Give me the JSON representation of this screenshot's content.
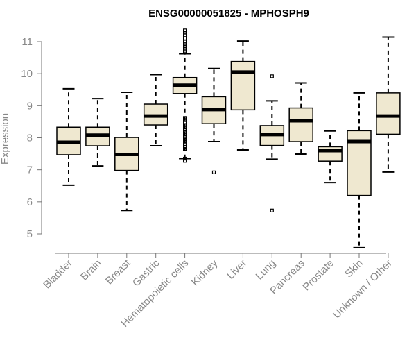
{
  "chart_data": {
    "type": "boxplot",
    "title": "ENSG00000051825 - MPHOSPH9",
    "xlabel": "",
    "ylabel": "Expression",
    "ylim": [
      4.3,
      11.4
    ],
    "yticks": [
      5,
      6,
      7,
      8,
      9,
      10,
      11
    ],
    "categories": [
      "Bladder",
      "Brain",
      "Breast",
      "Gastric",
      "Hematopoietic cells",
      "Kidney",
      "Liver",
      "Lung",
      "Pancreas",
      "Prostate",
      "Skin",
      "Unknown / Other"
    ],
    "boxes": [
      {
        "category": "Bladder",
        "whisker_low": 6.52,
        "q1": 7.47,
        "median": 7.86,
        "q3": 8.33,
        "whisker_high": 9.53,
        "outliers": []
      },
      {
        "category": "Brain",
        "whisker_low": 7.12,
        "q1": 7.75,
        "median": 8.08,
        "q3": 8.33,
        "whisker_high": 9.22,
        "outliers": []
      },
      {
        "category": "Breast",
        "whisker_low": 5.73,
        "q1": 6.98,
        "median": 7.48,
        "q3": 8.01,
        "whisker_high": 9.42,
        "outliers": []
      },
      {
        "category": "Gastric",
        "whisker_low": 7.75,
        "q1": 8.4,
        "median": 8.68,
        "q3": 9.05,
        "whisker_high": 9.97,
        "outliers": []
      },
      {
        "category": "Hematopoietic cells",
        "whisker_low": 7.35,
        "q1": 9.38,
        "median": 9.64,
        "q3": 9.88,
        "whisker_high": 10.62,
        "outliers": [
          11.35,
          11.28,
          11.2,
          11.1,
          11.0,
          10.92,
          10.85,
          10.78,
          10.7,
          10.66,
          8.62,
          8.55,
          8.48,
          8.4,
          8.32,
          8.25,
          8.18,
          8.1,
          8.02,
          7.95,
          7.88,
          7.8,
          7.72,
          7.65,
          7.35,
          7.28
        ]
      },
      {
        "category": "Kidney",
        "whisker_low": 7.88,
        "q1": 8.44,
        "median": 8.88,
        "q3": 9.28,
        "whisker_high": 10.16,
        "outliers": [
          6.92
        ]
      },
      {
        "category": "Liver",
        "whisker_low": 7.62,
        "q1": 8.87,
        "median": 10.05,
        "q3": 10.38,
        "whisker_high": 11.02,
        "outliers": []
      },
      {
        "category": "Lung",
        "whisker_low": 7.33,
        "q1": 7.76,
        "median": 8.1,
        "q3": 8.38,
        "whisker_high": 9.15,
        "outliers": [
          9.92,
          5.73
        ]
      },
      {
        "category": "Pancreas",
        "whisker_low": 7.49,
        "q1": 7.88,
        "median": 8.53,
        "q3": 8.93,
        "whisker_high": 9.71,
        "outliers": []
      },
      {
        "category": "Prostate",
        "whisker_low": 6.6,
        "q1": 7.27,
        "median": 7.6,
        "q3": 7.72,
        "whisker_high": 8.21,
        "outliers": []
      },
      {
        "category": "Skin",
        "whisker_low": 4.57,
        "q1": 6.2,
        "median": 7.88,
        "q3": 8.22,
        "whisker_high": 9.4,
        "outliers": []
      },
      {
        "category": "Unknown / Other",
        "whisker_low": 6.93,
        "q1": 8.11,
        "median": 8.68,
        "q3": 9.4,
        "whisker_high": 11.14,
        "outliers": []
      }
    ],
    "colors": {
      "box_fill": "#efe8d0",
      "stroke": "#000000",
      "axis_text": "#888888"
    }
  }
}
